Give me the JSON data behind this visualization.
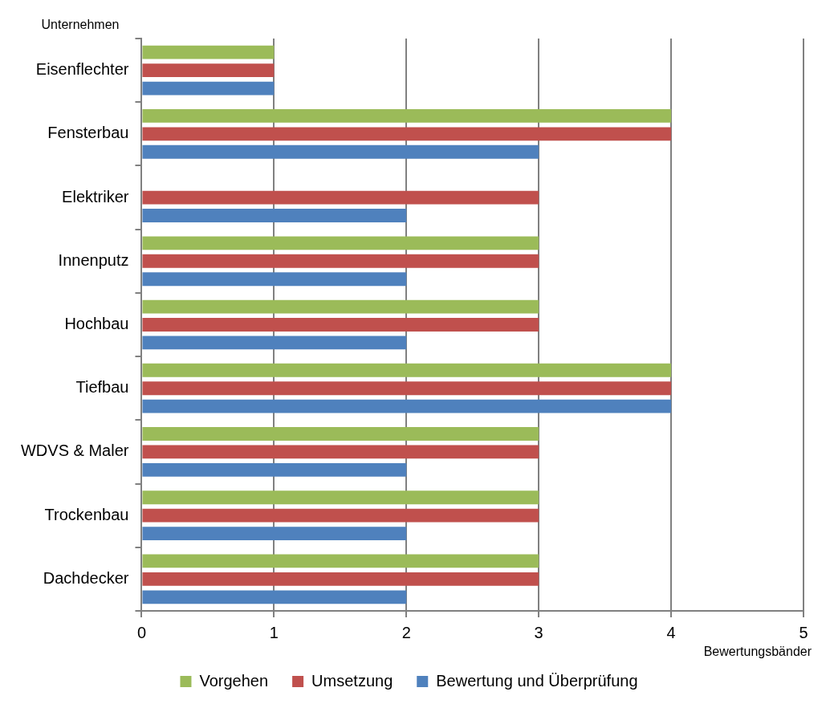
{
  "chart_data": {
    "type": "bar",
    "orientation": "horizontal",
    "xlabel": "Bewertungsbänder",
    "ylabel": "Unternehmen",
    "categories": [
      "Eisenflechter",
      "Fensterbau",
      "Elektriker",
      "Innenputz",
      "Hochbau",
      "Tiefbau",
      "WDVS & Maler",
      "Trockenbau",
      "Dachdecker"
    ],
    "series": [
      {
        "name": "Vorgehen",
        "color": "#9bbb59",
        "values": [
          1,
          4,
          null,
          3,
          3,
          4,
          3,
          3,
          3
        ]
      },
      {
        "name": "Umsetzung",
        "color": "#c0504d",
        "values": [
          1,
          4,
          3,
          3,
          3,
          4,
          3,
          3,
          3
        ]
      },
      {
        "name": "Bewertung und Überprüfung",
        "color": "#4f81bd",
        "values": [
          1,
          3,
          2,
          2,
          2,
          4,
          2,
          2,
          2
        ]
      }
    ],
    "xlim": [
      0,
      5
    ],
    "xticks": [
      0,
      1,
      2,
      3,
      4,
      5
    ],
    "grid": "x",
    "legend": "bottom"
  }
}
